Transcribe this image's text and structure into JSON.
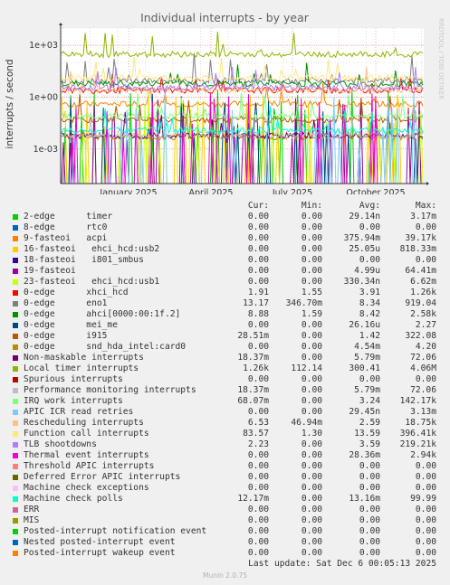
{
  "chart_data": {
    "type": "line",
    "title": "Individual interrupts - by year",
    "ylabel": "interrupts / second",
    "side_label": "RRDTOOL / TOBI OETIKER",
    "x_ticks": [
      "January 2025",
      "April 2025",
      "July 2025",
      "October 2025"
    ],
    "y_ticks": [
      "1e+03",
      "1e+00",
      "1e-03"
    ],
    "y_scale": "log",
    "ylim": [
      1e-05,
      10000
    ],
    "grid": true,
    "columns": [
      "Cur:",
      "Min:",
      "Avg:",
      "Max:"
    ],
    "series": [
      {
        "name": "2-edge      timer",
        "color": "#00cc00",
        "cur": "0.00",
        "min": "0.00",
        "avg": "29.14n",
        "max": "3.17m",
        "level": 3e-05
      },
      {
        "name": "8-edge      rtc0",
        "color": "#0066b3",
        "cur": "0.00",
        "min": "0.00",
        "avg": "0.00",
        "max": "0.00",
        "level": 0
      },
      {
        "name": "9-fasteoi   acpi",
        "color": "#ff8000",
        "cur": "0.00",
        "min": "0.00",
        "avg": "375.94m",
        "max": "39.17k",
        "level": 0.4
      },
      {
        "name": "16-fasteoi   ehci_hcd:usb2",
        "color": "#ffcc00",
        "cur": "0.00",
        "min": "0.00",
        "avg": "25.05u",
        "max": "818.33m",
        "level": 3e-05
      },
      {
        "name": "18-fasteoi   i801_smbus",
        "color": "#330099",
        "cur": "0.00",
        "min": "0.00",
        "avg": "0.00",
        "max": "0.00",
        "level": 0
      },
      {
        "name": "19-fasteoi",
        "color": "#990099",
        "cur": "0.00",
        "min": "0.00",
        "avg": "4.99u",
        "max": "64.41m",
        "level": 2e-05
      },
      {
        "name": "23-fasteoi   ehci_hcd:usb1",
        "color": "#ccff00",
        "cur": "0.00",
        "min": "0.00",
        "avg": "330.34n",
        "max": "6.62m",
        "level": 2e-05
      },
      {
        "name": "0-edge      xhci_hcd",
        "color": "#ff0000",
        "cur": "1.91",
        "min": "1.55",
        "avg": "3.91",
        "max": "1.26k",
        "level": 2.5
      },
      {
        "name": "0-edge      eno1",
        "color": "#808080",
        "cur": "13.17",
        "min": "346.70m",
        "avg": "8.34",
        "max": "919.04",
        "level": 9
      },
      {
        "name": "0-edge      ahci[0000:00:1f.2]",
        "color": "#008f00",
        "cur": "8.88",
        "min": "1.59",
        "avg": "8.42",
        "max": "2.58k",
        "level": 6
      },
      {
        "name": "0-edge      mei_me",
        "color": "#00487d",
        "cur": "0.00",
        "min": "0.00",
        "avg": "26.16u",
        "max": "2.27",
        "level": 3e-05
      },
      {
        "name": "0-edge      i915",
        "color": "#b35a00",
        "cur": "28.51m",
        "min": "0.00",
        "avg": "1.42",
        "max": "322.08",
        "level": 0.05
      },
      {
        "name": "0-edge      snd_hda_intel:card0",
        "color": "#b38f00",
        "cur": "0.00",
        "min": "0.00",
        "avg": "4.54m",
        "max": "4.20",
        "level": 0.005
      },
      {
        "name": "Non-maskable interrupts",
        "color": "#6b006b",
        "cur": "18.37m",
        "min": "0.00",
        "avg": "5.79m",
        "max": "72.06",
        "level": 0.006
      },
      {
        "name": "Local timer interrupts",
        "color": "#8fb300",
        "cur": "1.26k",
        "min": "112.14",
        "avg": "300.41",
        "max": "4.06M",
        "level": 300
      },
      {
        "name": "Spurious interrupts",
        "color": "#b30000",
        "cur": "0.00",
        "min": "0.00",
        "avg": "0.00",
        "max": "0.00",
        "level": 0
      },
      {
        "name": "Performance monitoring interrupts",
        "color": "#bebebe",
        "cur": "18.37m",
        "min": "0.00",
        "avg": "5.79m",
        "max": "72.06",
        "level": 0.006
      },
      {
        "name": "IRQ work interrupts",
        "color": "#80ff80",
        "cur": "68.07m",
        "min": "0.00",
        "avg": "3.24",
        "max": "142.17k",
        "level": 0.08
      },
      {
        "name": "APIC ICR read retries",
        "color": "#80c9ff",
        "cur": "0.00",
        "min": "0.00",
        "avg": "29.45n",
        "max": "3.13m",
        "level": 3e-05
      },
      {
        "name": "Rescheduling interrupts",
        "color": "#ffc080",
        "cur": "6.53",
        "min": "46.94m",
        "avg": "2.59",
        "max": "18.75k",
        "level": 2.6
      },
      {
        "name": "Function call interrupts",
        "color": "#ffe680",
        "cur": "83.57",
        "min": "1.30",
        "avg": "13.59",
        "max": "396.41k",
        "level": 13
      },
      {
        "name": "TLB shootdowns",
        "color": "#aa80ff",
        "cur": "2.23",
        "min": "0.00",
        "avg": "3.59",
        "max": "219.21k",
        "level": 3.5
      },
      {
        "name": "Thermal event interrupts",
        "color": "#ee00cc",
        "cur": "0.00",
        "min": "0.00",
        "avg": "28.36m",
        "max": "2.94k",
        "level": 2e-05
      },
      {
        "name": "Threshold APIC interrupts",
        "color": "#ff8080",
        "cur": "0.00",
        "min": "0.00",
        "avg": "0.00",
        "max": "0.00",
        "level": 0
      },
      {
        "name": "Deferred Error APIC interrupts",
        "color": "#666600",
        "cur": "0.00",
        "min": "0.00",
        "avg": "0.00",
        "max": "0.00",
        "level": 0
      },
      {
        "name": "Machine check exceptions",
        "color": "#ffbfff",
        "cur": "0.00",
        "min": "0.00",
        "avg": "0.00",
        "max": "0.00",
        "level": 0
      },
      {
        "name": "Machine check polls",
        "color": "#00ffcc",
        "cur": "12.17m",
        "min": "0.00",
        "avg": "13.16m",
        "max": "99.99",
        "level": 0.012
      },
      {
        "name": "ERR",
        "color": "#cc6699",
        "cur": "0.00",
        "min": "0.00",
        "avg": "0.00",
        "max": "0.00",
        "level": 0
      },
      {
        "name": "MIS",
        "color": "#999900",
        "cur": "0.00",
        "min": "0.00",
        "avg": "0.00",
        "max": "0.00",
        "level": 0
      },
      {
        "name": "Posted-interrupt notification event",
        "color": "#00cc00",
        "cur": "0.00",
        "min": "0.00",
        "avg": "0.00",
        "max": "0.00",
        "level": 0
      },
      {
        "name": "Nested posted-interrupt event",
        "color": "#0066b3",
        "cur": "0.00",
        "min": "0.00",
        "avg": "0.00",
        "max": "0.00",
        "level": 0
      },
      {
        "name": "Posted-interrupt wakeup event",
        "color": "#ff8000",
        "cur": "0.00",
        "min": "0.00",
        "avg": "0.00",
        "max": "0.00",
        "level": 0
      }
    ]
  },
  "footer": {
    "last_update": "Last update: Sat Dec  6 00:05:13 2025",
    "generator": "Munin 2.0.75"
  }
}
